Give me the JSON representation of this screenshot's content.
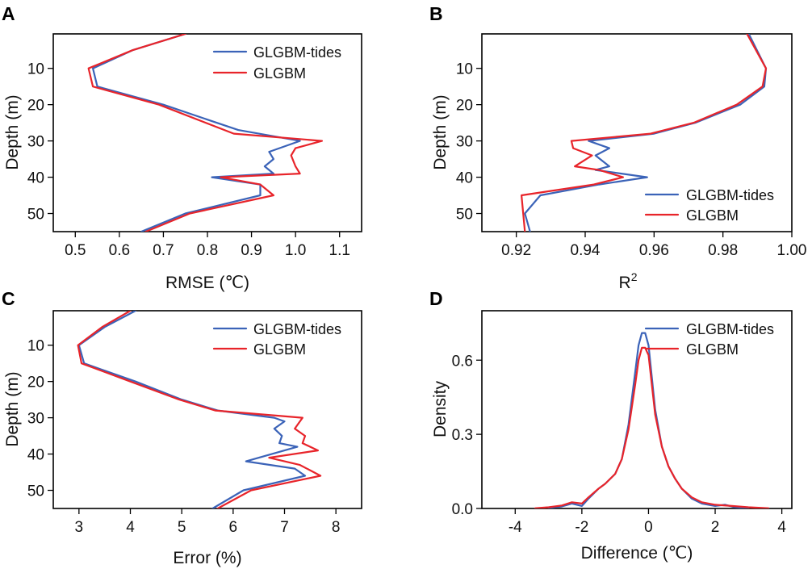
{
  "colors": {
    "tides": "#3b63b8",
    "base": "#e8242a"
  },
  "chart_data": [
    {
      "panel": "A",
      "type": "line",
      "xlabel": "RMSE (℃)",
      "ylabel": "Depth (m)",
      "xlim": [
        0.45,
        1.15
      ],
      "ylim": [
        55,
        0.5
      ],
      "xticks": [
        0.5,
        0.6,
        0.7,
        0.8,
        0.9,
        1.0,
        1.1
      ],
      "xtick_labels": [
        "0.5",
        "0.6",
        "0.7",
        "0.8",
        "0.9",
        "1.0",
        "1.1"
      ],
      "yticks": [
        10,
        20,
        30,
        40,
        50
      ],
      "ytick_labels": [
        "10",
        "20",
        "30",
        "40",
        "50"
      ],
      "legend": "top-right",
      "series": [
        {
          "name": "GLGBM-tides",
          "color_key": "tides",
          "x": [
            0.75,
            0.63,
            0.54,
            0.55,
            0.7,
            0.87,
            1.01,
            0.94,
            0.95,
            0.93,
            0.95,
            0.81,
            0.92,
            0.92,
            0.75,
            0.65
          ],
          "y": [
            0.5,
            5,
            10,
            15,
            20,
            27,
            30,
            33,
            35,
            37,
            39,
            40,
            42,
            45,
            50,
            55
          ]
        },
        {
          "name": "GLGBM",
          "color_key": "base",
          "x": [
            0.75,
            0.63,
            0.53,
            0.54,
            0.69,
            0.86,
            1.06,
            1.0,
            0.99,
            1.0,
            1.01,
            0.83,
            0.92,
            0.95,
            0.76,
            0.66
          ],
          "y": [
            0.5,
            5,
            10,
            15,
            20,
            28,
            30,
            32,
            34,
            37,
            39,
            40,
            42,
            45,
            50,
            55
          ]
        }
      ]
    },
    {
      "panel": "B",
      "type": "line",
      "xlabel": "R",
      "xlabel_sup": "2",
      "ylabel": "Depth (m)",
      "xlim": [
        0.91,
        1.0
      ],
      "ylim": [
        55,
        0.5
      ],
      "xticks": [
        0.92,
        0.94,
        0.96,
        0.98,
        1.0
      ],
      "xtick_labels": [
        "0.92",
        "0.94",
        "0.96",
        "0.98",
        "1.00"
      ],
      "yticks": [
        10,
        20,
        30,
        40,
        50
      ],
      "ytick_labels": [
        "10",
        "20",
        "30",
        "40",
        "50"
      ],
      "legend": "bottom-right",
      "series": [
        {
          "name": "GLGBM-tides",
          "color_key": "tides",
          "x": [
            0.9875,
            0.9925,
            0.992,
            0.985,
            0.972,
            0.96,
            0.941,
            0.947,
            0.943,
            0.947,
            0.943,
            0.958,
            0.944,
            0.927,
            0.9225,
            0.924
          ],
          "y": [
            0.5,
            10,
            15,
            20,
            25,
            28,
            30,
            32,
            34,
            37,
            38,
            40,
            42,
            45,
            50,
            55
          ]
        },
        {
          "name": "GLGBM",
          "color_key": "base",
          "x": [
            0.987,
            0.9925,
            0.9915,
            0.984,
            0.9715,
            0.959,
            0.936,
            0.9365,
            0.942,
            0.937,
            0.944,
            0.951,
            0.9425,
            0.9215,
            0.9225
          ],
          "y": [
            0.5,
            10,
            15,
            20,
            25,
            28,
            30,
            32,
            34,
            37,
            38,
            40,
            42,
            45,
            55
          ]
        }
      ]
    },
    {
      "panel": "C",
      "type": "line",
      "xlabel": "Error (%)",
      "ylabel": "Depth (m)",
      "xlim": [
        2.5,
        8.5
      ],
      "ylim": [
        55,
        0.5
      ],
      "xticks": [
        3,
        4,
        5,
        6,
        7,
        8
      ],
      "xtick_labels": [
        "3",
        "4",
        "5",
        "6",
        "7",
        "8"
      ],
      "yticks": [
        10,
        20,
        30,
        40,
        50
      ],
      "ytick_labels": [
        "10",
        "20",
        "30",
        "40",
        "50"
      ],
      "legend": "top-right",
      "series": [
        {
          "name": "GLGBM-tides",
          "color_key": "tides",
          "x": [
            4.1,
            3.5,
            3.0,
            3.1,
            4.1,
            5.0,
            5.7,
            6.8,
            7.0,
            6.8,
            6.95,
            6.9,
            7.25,
            6.25,
            7.2,
            7.4,
            6.2,
            5.6
          ],
          "y": [
            0.5,
            5,
            10,
            15,
            20,
            25,
            28,
            30,
            31,
            33,
            35,
            37,
            38,
            42,
            44,
            46,
            50,
            55
          ]
        },
        {
          "name": "GLGBM",
          "color_key": "base",
          "x": [
            4.0,
            3.45,
            2.98,
            3.05,
            4.0,
            4.95,
            5.65,
            7.35,
            7.2,
            7.4,
            7.35,
            7.65,
            6.7,
            7.3,
            7.7,
            6.35,
            5.7
          ],
          "y": [
            0.5,
            5,
            10,
            15,
            20,
            25,
            28,
            30,
            33,
            35,
            37,
            39,
            41,
            43,
            46,
            50,
            55
          ]
        }
      ]
    },
    {
      "panel": "D",
      "type": "line",
      "xlabel": "Difference (℃)",
      "ylabel": "Density",
      "xlim": [
        -5,
        4.3
      ],
      "ylim": [
        0.0,
        0.8
      ],
      "xticks": [
        -4,
        -2,
        0,
        2,
        4
      ],
      "xtick_labels": [
        "-4",
        "-2",
        "0",
        "2",
        "4"
      ],
      "yticks": [
        0.0,
        0.3,
        0.6
      ],
      "ytick_labels": [
        "0.0",
        "0.3",
        "0.6"
      ],
      "legend": "top-right",
      "series": [
        {
          "name": "GLGBM-tides",
          "color_key": "tides",
          "x": [
            -3.0,
            -2.6,
            -2.3,
            -2.0,
            -1.8,
            -1.5,
            -1.3,
            -1.0,
            -0.8,
            -0.6,
            -0.4,
            -0.3,
            -0.2,
            -0.1,
            0.0,
            0.1,
            0.2,
            0.4,
            0.6,
            0.8,
            1.0,
            1.3,
            1.6,
            2.0,
            2.3,
            2.6,
            3.0
          ],
          "y": [
            0.002,
            0.008,
            0.02,
            0.01,
            0.04,
            0.08,
            0.1,
            0.14,
            0.2,
            0.34,
            0.55,
            0.66,
            0.71,
            0.71,
            0.66,
            0.53,
            0.4,
            0.25,
            0.17,
            0.12,
            0.08,
            0.04,
            0.02,
            0.01,
            0.015,
            0.005,
            0.001
          ]
        },
        {
          "name": "GLGBM",
          "color_key": "base",
          "x": [
            -3.4,
            -3.0,
            -2.6,
            -2.3,
            -2.0,
            -1.8,
            -1.5,
            -1.3,
            -1.0,
            -0.8,
            -0.6,
            -0.4,
            -0.3,
            -0.2,
            -0.1,
            0.0,
            0.1,
            0.2,
            0.4,
            0.6,
            0.8,
            1.0,
            1.3,
            1.6,
            2.0,
            2.5,
            3.0,
            3.6
          ],
          "y": [
            0.001,
            0.005,
            0.012,
            0.025,
            0.02,
            0.045,
            0.08,
            0.1,
            0.14,
            0.2,
            0.32,
            0.5,
            0.6,
            0.65,
            0.65,
            0.62,
            0.5,
            0.38,
            0.25,
            0.17,
            0.12,
            0.08,
            0.045,
            0.025,
            0.015,
            0.01,
            0.005,
            0.001
          ]
        }
      ]
    }
  ]
}
